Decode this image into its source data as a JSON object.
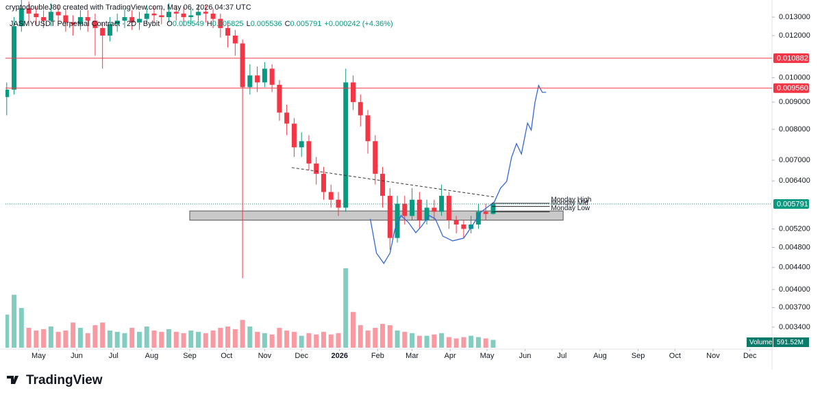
{
  "header": {
    "credit": "cryptodoubleJ80 created with TradingView.com, May 06, 2026 04:37 UTC",
    "brand": "TradingView"
  },
  "chart_data": {
    "type": "candlestick",
    "symbol": "JASMYUSDT Perpetual Contract · 2D · Bybit",
    "ohlc_prefixes": [
      "O",
      "H",
      "L",
      "C"
    ],
    "change": "+0.000242 (+4.36%)",
    "log_scale": true,
    "up_color": "#089981",
    "down_color": "#f23645",
    "x": [
      1,
      7,
      13,
      19,
      25,
      31,
      37,
      43,
      49,
      55,
      61,
      67,
      73,
      79,
      85,
      91,
      97,
      103,
      109,
      115,
      121,
      127,
      133,
      139,
      145,
      151,
      157,
      163,
      169,
      175,
      181,
      187,
      193,
      199,
      205,
      211,
      217,
      223,
      229,
      235,
      241,
      247,
      253,
      259,
      265,
      271,
      277,
      283,
      289,
      295,
      301,
      307,
      313,
      319,
      325,
      331,
      337,
      343,
      349,
      355,
      361,
      367,
      373,
      379,
      385,
      391,
      397
    ],
    "open": [
      0.0092,
      0.0095,
      0.0125,
      0.0135,
      0.0132,
      0.013,
      0.0128,
      0.0133,
      0.0131,
      0.0127,
      0.0126,
      0.013,
      0.0128,
      0.0124,
      0.012,
      0.0126,
      0.0128,
      0.013,
      0.0127,
      0.0129,
      0.0132,
      0.0131,
      0.013,
      0.0133,
      0.0132,
      0.013,
      0.0131,
      0.0133,
      0.0132,
      0.0129,
      0.0124,
      0.012,
      0.0116,
      0.0096,
      0.0101,
      0.0098,
      0.0104,
      0.0097,
      0.0086,
      0.0082,
      0.0074,
      0.0076,
      0.0069,
      0.0066,
      0.0061,
      0.0059,
      0.0057,
      0.0098,
      0.009,
      0.0085,
      0.0076,
      0.0066,
      0.006,
      0.005,
      0.0058,
      0.0055,
      0.0059,
      0.0054,
      0.0057,
      0.0056,
      0.006,
      0.0054,
      0.0053,
      0.0052,
      0.0053,
      0.0056,
      0.005549
    ],
    "high": [
      0.0098,
      0.013,
      0.014,
      0.0139,
      0.0136,
      0.0134,
      0.0138,
      0.0137,
      0.0135,
      0.0131,
      0.0134,
      0.0134,
      0.0132,
      0.0127,
      0.013,
      0.0132,
      0.0135,
      0.0134,
      0.0133,
      0.0137,
      0.0136,
      0.0135,
      0.0138,
      0.0137,
      0.0136,
      0.0135,
      0.0137,
      0.0137,
      0.0135,
      0.0132,
      0.0127,
      0.0123,
      0.0118,
      0.0106,
      0.0105,
      0.0107,
      0.0106,
      0.0099,
      0.0089,
      0.0084,
      0.0079,
      0.0078,
      0.0071,
      0.0068,
      0.0063,
      0.0061,
      0.0104,
      0.0101,
      0.0093,
      0.0087,
      0.0078,
      0.0068,
      0.0062,
      0.006,
      0.006,
      0.0062,
      0.0061,
      0.0059,
      0.0059,
      0.0063,
      0.0061,
      0.0055,
      0.0054,
      0.0055,
      0.0058,
      0.0058,
      0.005825
    ],
    "low": [
      0.0085,
      0.0093,
      0.0122,
      0.0128,
      0.0126,
      0.0124,
      0.0125,
      0.0127,
      0.0122,
      0.012,
      0.0123,
      0.0122,
      0.011,
      0.0104,
      0.0117,
      0.0122,
      0.0124,
      0.0123,
      0.0123,
      0.0126,
      0.0127,
      0.0126,
      0.0127,
      0.0128,
      0.0125,
      0.0126,
      0.0128,
      0.0127,
      0.0124,
      0.0119,
      0.0114,
      0.011,
      0.0042,
      0.0093,
      0.0094,
      0.0096,
      0.0094,
      0.0083,
      0.0078,
      0.0071,
      0.0071,
      0.0067,
      0.0063,
      0.0059,
      0.0057,
      0.0055,
      0.0056,
      0.0087,
      0.0081,
      0.0072,
      0.0063,
      0.0057,
      0.00475,
      0.0049,
      0.0053,
      0.0054,
      0.0052,
      0.0053,
      0.0054,
      0.0055,
      0.0052,
      0.0051,
      0.005,
      0.0051,
      0.0052,
      0.0054,
      0.005536
    ],
    "close": [
      0.0095,
      0.0125,
      0.0135,
      0.0132,
      0.013,
      0.0128,
      0.0133,
      0.0131,
      0.0127,
      0.0126,
      0.013,
      0.0128,
      0.0124,
      0.012,
      0.0126,
      0.0128,
      0.013,
      0.0127,
      0.0129,
      0.0132,
      0.0131,
      0.013,
      0.0133,
      0.0132,
      0.013,
      0.0131,
      0.0133,
      0.0132,
      0.0129,
      0.0124,
      0.012,
      0.0116,
      0.0096,
      0.0101,
      0.0098,
      0.0104,
      0.0097,
      0.0086,
      0.0082,
      0.0074,
      0.0076,
      0.0069,
      0.0066,
      0.0061,
      0.0059,
      0.0057,
      0.0098,
      0.009,
      0.0085,
      0.0076,
      0.0066,
      0.006,
      0.005,
      0.0058,
      0.0055,
      0.0059,
      0.0054,
      0.0057,
      0.0056,
      0.006,
      0.0054,
      0.0053,
      0.0052,
      0.0053,
      0.0056,
      0.005549,
      0.005791
    ],
    "volume": [
      2500,
      4000,
      3000,
      1500,
      1300,
      1400,
      1600,
      1200,
      1300,
      1900,
      1500,
      1100,
      1700,
      1900,
      1300,
      1200,
      1100,
      1500,
      1200,
      1600,
      1300,
      1200,
      1400,
      1200,
      1100,
      1300,
      1200,
      1100,
      1300,
      1500,
      1600,
      1400,
      2100,
      1600,
      1200,
      1100,
      1000,
      1500,
      1300,
      1200,
      900,
      1100,
      1000,
      1200,
      1000,
      1100,
      6000,
      2700,
      1700,
      1300,
      1500,
      1800,
      1700,
      1300,
      1200,
      1100,
      900,
      900,
      1000,
      1100,
      800,
      700,
      800,
      900,
      800,
      700,
      591.52
    ],
    "volume_label": "Volume",
    "volume_value_label": "591.52M",
    "volume_ylim": [
      0,
      6200
    ],
    "xlim": [
      0,
      624
    ],
    "xticks": [
      {
        "value": 27,
        "label": "May"
      },
      {
        "value": 58,
        "label": "Jun"
      },
      {
        "value": 88,
        "label": "Jul"
      },
      {
        "value": 119,
        "label": "Aug"
      },
      {
        "value": 150,
        "label": "Sep"
      },
      {
        "value": 180,
        "label": "Oct"
      },
      {
        "value": 211,
        "label": "Nov"
      },
      {
        "value": 241,
        "label": "Dec"
      },
      {
        "value": 272,
        "label": "2026"
      },
      {
        "value": 303,
        "label": "Feb"
      },
      {
        "value": 331,
        "label": "Mar"
      },
      {
        "value": 362,
        "label": "Apr"
      },
      {
        "value": 392,
        "label": "May"
      },
      {
        "value": 423,
        "label": "Jun"
      },
      {
        "value": 453,
        "label": "Jul"
      },
      {
        "value": 484,
        "label": "Aug"
      },
      {
        "value": 515,
        "label": "Sep"
      },
      {
        "value": 545,
        "label": "Oct"
      },
      {
        "value": 576,
        "label": "Nov"
      },
      {
        "value": 606,
        "label": "Dec"
      }
    ],
    "ylim": [
      0.00311,
      0.01359
    ],
    "yticks": [
      {
        "value": 0.013,
        "label": "0.013000"
      },
      {
        "value": 0.012,
        "label": "0.012000"
      },
      {
        "value": 0.01,
        "label": "0.010000"
      },
      {
        "value": 0.009,
        "label": "0.009000"
      },
      {
        "value": 0.008,
        "label": "0.008000"
      },
      {
        "value": 0.007,
        "label": "0.007000"
      },
      {
        "value": 0.0064,
        "label": "0.006400"
      },
      {
        "value": 0.0052,
        "label": "0.005200"
      },
      {
        "value": 0.0048,
        "label": "0.004800"
      },
      {
        "value": 0.0044,
        "label": "0.004400"
      },
      {
        "value": 0.004,
        "label": "0.004000"
      },
      {
        "value": 0.0037,
        "label": "0.003700"
      },
      {
        "value": 0.0034,
        "label": "0.003400"
      }
    ],
    "levels": [
      {
        "value": 0.010882,
        "label": "0.010882"
      },
      {
        "value": 0.00956,
        "label": "0.009560"
      }
    ],
    "trendline": {
      "x": [
        233,
        398
      ],
      "y": [
        0.00678,
        0.00597
      ]
    },
    "zone": {
      "x": [
        150,
        454
      ],
      "y": [
        0.0054,
        0.00562
      ]
    },
    "monday_levels": {
      "x": [
        396,
        443
      ],
      "labels": [
        "Monday High",
        "Monday Mid",
        "Monday Low"
      ],
      "values": [
        0.00581,
        0.00573,
        0.0056
      ]
    },
    "projection": {
      "x": [
        297,
        302,
        308,
        313,
        317,
        322,
        328,
        334,
        339,
        345,
        350,
        356,
        364,
        373,
        380,
        387,
        398,
        403,
        408,
        412,
        416,
        420,
        425,
        428,
        431,
        434,
        437,
        440
      ],
      "y": [
        0.005429,
        0.004682,
        0.004479,
        0.004682,
        0.005192,
        0.005509,
        0.005348,
        0.005116,
        0.00527,
        0.005509,
        0.005429,
        0.005041,
        0.004937,
        0.004996,
        0.00527,
        0.005591,
        0.005846,
        0.006202,
        0.006388,
        0.007086,
        0.007518,
        0.007192,
        0.008216,
        0.007977,
        0.008979,
        0.00967,
        0.009387,
        0.009387
      ]
    }
  }
}
